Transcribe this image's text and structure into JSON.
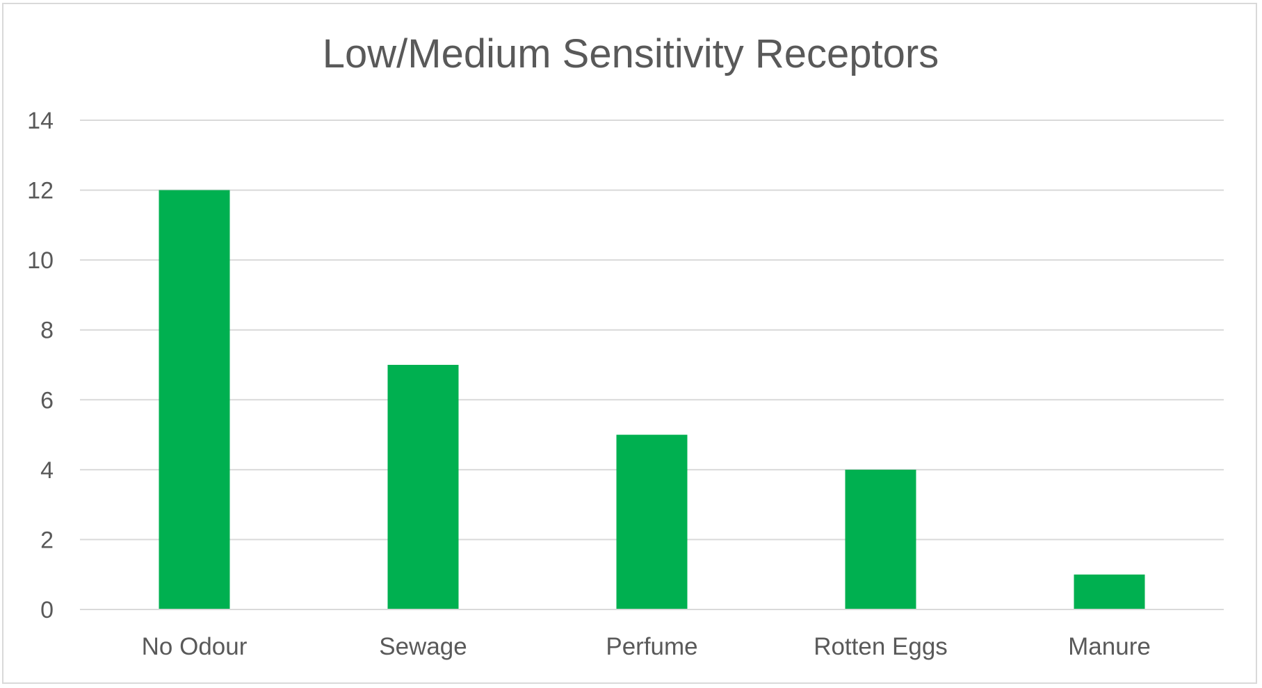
{
  "chart_data": {
    "type": "bar",
    "title": "Low/Medium Sensitivity Receptors",
    "xlabel": "",
    "ylabel": "",
    "categories": [
      "No Odour",
      "Sewage",
      "Perfume",
      "Rotten Eggs",
      "Manure"
    ],
    "values": [
      12,
      7,
      5,
      4,
      1
    ],
    "ylim": [
      0,
      14
    ],
    "yticks": [
      "0",
      "2",
      "4",
      "6",
      "8",
      "10",
      "12",
      "14"
    ],
    "grid": true,
    "legend": "none",
    "bar_color": "#00b050",
    "gridline_color": "#d9d9d9",
    "text_color": "#595959"
  }
}
